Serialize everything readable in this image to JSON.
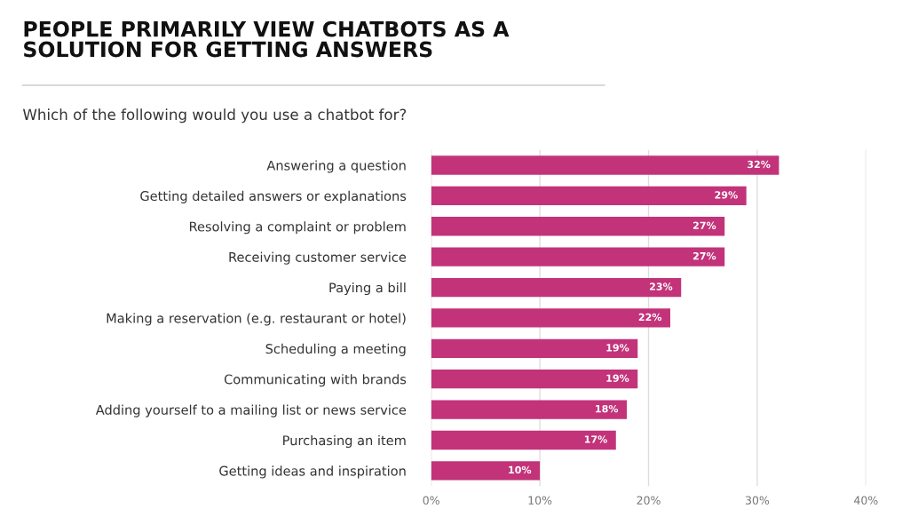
{
  "chart_data": {
    "type": "bar",
    "orientation": "horizontal",
    "title": "PEOPLE PRIMARILY VIEW CHATBOTS AS A\nSOLUTION FOR GETTING ANSWERS",
    "subtitle": "Which of the following would you use a chatbot for?",
    "categories": [
      "Answering a question",
      "Getting detailed answers or explanations",
      "Resolving a complaint or problem",
      "Receiving customer service",
      "Paying a bill",
      "Making a reservation (e.g. restaurant or hotel)",
      "Scheduling a meeting",
      "Communicating with brands",
      "Adding yourself to a mailing list or news service",
      "Purchasing an item",
      "Getting ideas and inspiration"
    ],
    "values": [
      32,
      29,
      27,
      27,
      23,
      22,
      19,
      19,
      18,
      17,
      10
    ],
    "value_labels": [
      "32%",
      "29%",
      "27%",
      "27%",
      "23%",
      "22%",
      "19%",
      "19%",
      "18%",
      "17%",
      "10%"
    ],
    "color": "#c2337a",
    "xlim": [
      0,
      40
    ],
    "xticks": [
      {
        "value": 0,
        "label": "0%"
      },
      {
        "value": 10,
        "label": "10%"
      },
      {
        "value": 20,
        "label": "20%"
      },
      {
        "value": 30,
        "label": "30%"
      },
      {
        "value": 40,
        "label": "40%"
      }
    ],
    "grid": "x",
    "legend": false
  }
}
